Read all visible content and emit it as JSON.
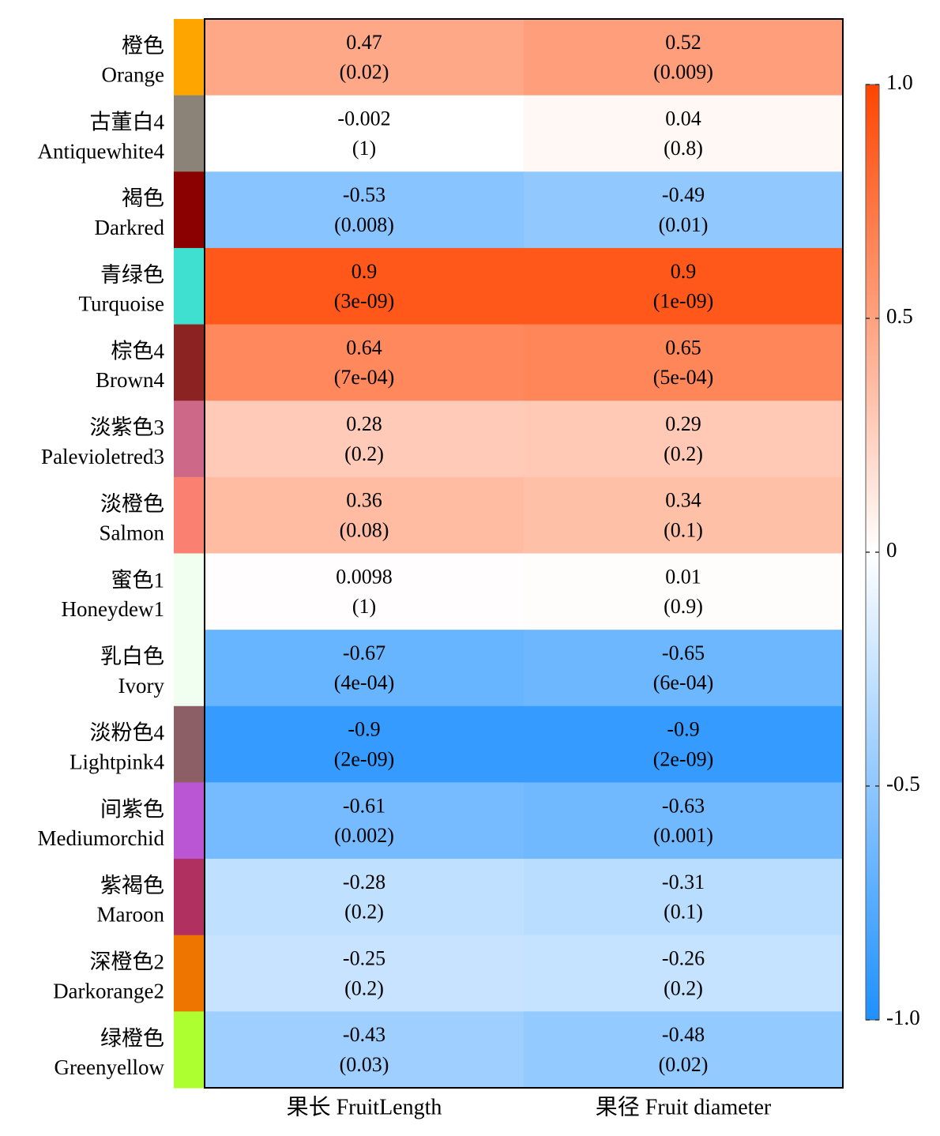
{
  "chart_data": {
    "type": "heatmap",
    "columns": [
      "果长 FruitLength",
      "果径 Fruit diameter"
    ],
    "rows": [
      {
        "cn": "橙色",
        "en": "Orange",
        "color": "#FFA500",
        "values": [
          0.47,
          0.52
        ],
        "pvalues": [
          "(0.02)",
          "(0.009)"
        ],
        "labels": [
          "0.47",
          "0.52"
        ]
      },
      {
        "cn": "古董白4",
        "en": "Antiquewhite4",
        "color": "#8B8378",
        "values": [
          -0.002,
          0.04
        ],
        "pvalues": [
          "(1)",
          "(0.8)"
        ],
        "labels": [
          "-0.002",
          "0.04"
        ]
      },
      {
        "cn": "褐色",
        "en": "Darkred",
        "color": "#8B0000",
        "values": [
          -0.53,
          -0.49
        ],
        "pvalues": [
          "(0.008)",
          "(0.01)"
        ],
        "labels": [
          "-0.53",
          "-0.49"
        ]
      },
      {
        "cn": "青绿色",
        "en": "Turquoise",
        "color": "#40E0D0",
        "values": [
          0.9,
          0.9
        ],
        "pvalues": [
          "(3e-09)",
          "(1e-09)"
        ],
        "labels": [
          "0.9",
          "0.9"
        ]
      },
      {
        "cn": "棕色4",
        "en": "Brown4",
        "color": "#8B2323",
        "values": [
          0.64,
          0.65
        ],
        "pvalues": [
          "(7e-04)",
          "(5e-04)"
        ],
        "labels": [
          "0.64",
          "0.65"
        ]
      },
      {
        "cn": "淡紫色3",
        "en": "Palevioletred3",
        "color": "#CD6889",
        "values": [
          0.28,
          0.29
        ],
        "pvalues": [
          "(0.2)",
          "(0.2)"
        ],
        "labels": [
          "0.28",
          "0.29"
        ]
      },
      {
        "cn": "淡橙色",
        "en": "Salmon",
        "color": "#FA8072",
        "values": [
          0.36,
          0.34
        ],
        "pvalues": [
          "(0.08)",
          "(0.1)"
        ],
        "labels": [
          "0.36",
          "0.34"
        ]
      },
      {
        "cn": "蜜色1",
        "en": "Honeydew1",
        "color": "#F0FFF0",
        "values": [
          0.0098,
          0.01
        ],
        "pvalues": [
          "(1)",
          "(0.9)"
        ],
        "labels": [
          "0.0098",
          "0.01"
        ]
      },
      {
        "cn": "乳白色",
        "en": "Ivory",
        "color": "#F0FFF0",
        "values": [
          -0.67,
          -0.65
        ],
        "pvalues": [
          "(4e-04)",
          "(6e-04)"
        ],
        "labels": [
          "-0.67",
          "-0.65"
        ]
      },
      {
        "cn": "淡粉色4",
        "en": "Lightpink4",
        "color": "#8B5F65",
        "values": [
          -0.9,
          -0.9
        ],
        "pvalues": [
          "(2e-09)",
          "(2e-09)"
        ],
        "labels": [
          "-0.9",
          "-0.9"
        ]
      },
      {
        "cn": "间紫色",
        "en": "Mediumorchid",
        "color": "#BA55D3",
        "values": [
          -0.61,
          -0.63
        ],
        "pvalues": [
          "(0.002)",
          "(0.001)"
        ],
        "labels": [
          "-0.61",
          "-0.63"
        ]
      },
      {
        "cn": "紫褐色",
        "en": "Maroon",
        "color": "#B03060",
        "values": [
          -0.28,
          -0.31
        ],
        "pvalues": [
          "(0.2)",
          "(0.1)"
        ],
        "labels": [
          "-0.28",
          "-0.31"
        ]
      },
      {
        "cn": "深橙色2",
        "en": "Darkorange2",
        "color": "#EE7600",
        "values": [
          -0.25,
          -0.26
        ],
        "pvalues": [
          "(0.2)",
          "(0.2)"
        ],
        "labels": [
          "-0.25",
          "-0.26"
        ]
      },
      {
        "cn": "绿橙色",
        "en": "Greenyellow",
        "color": "#ADFF2F",
        "values": [
          -0.43,
          -0.48
        ],
        "pvalues": [
          "(0.03)",
          "(0.02)"
        ],
        "labels": [
          "-0.43",
          "-0.48"
        ]
      }
    ],
    "colorbar": {
      "range": [
        -1.0,
        1.0
      ],
      "ticks": [
        {
          "value": 1.0,
          "label": "1.0"
        },
        {
          "value": 0.5,
          "label": "0.5"
        },
        {
          "value": 0,
          "label": "0"
        },
        {
          "value": -0.5,
          "label": "-0.5"
        },
        {
          "value": -1.0,
          "label": "-1.0"
        }
      ],
      "color_low": "#1E90FF",
      "color_mid": "#FFFFFF",
      "color_high": "#FF4500"
    }
  }
}
